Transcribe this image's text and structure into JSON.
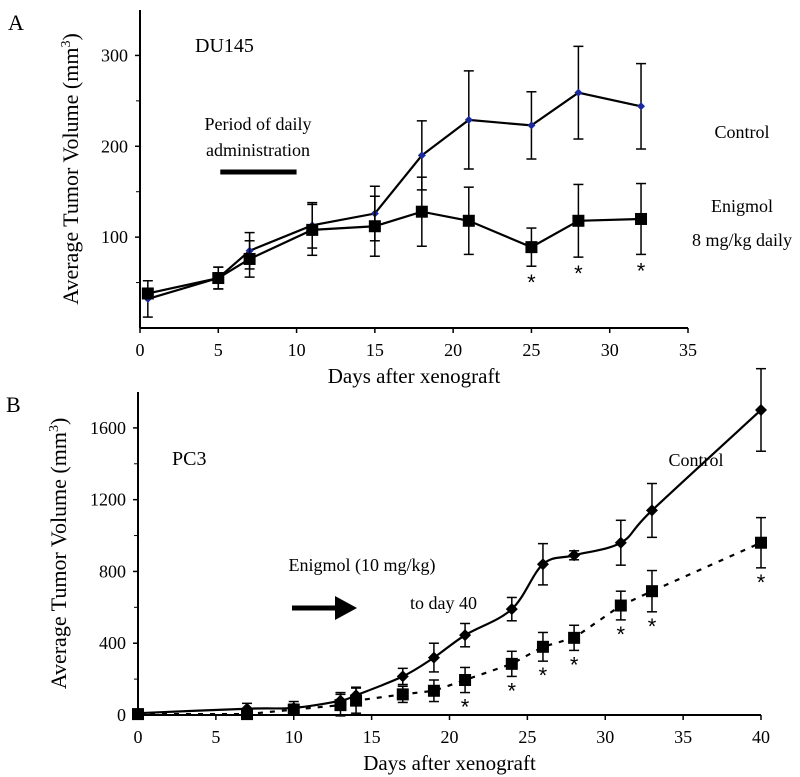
{
  "chart_data": [
    {
      "panel_label": "A",
      "type": "line",
      "title": "DU145",
      "xlabel": "Days after xenograft",
      "ylabel": "Average Tumor Volume (mm",
      "ylabel_sup": "3",
      "ylabel_close": ")",
      "xlim": [
        0,
        35
      ],
      "ylim": [
        0,
        350
      ],
      "xticks": [
        0,
        5,
        10,
        15,
        20,
        25,
        30,
        35
      ],
      "yticks": [
        100,
        200,
        300
      ],
      "yminor": [
        50,
        150,
        250
      ],
      "annotation": {
        "line1": "Period of daily",
        "line2": "administration",
        "bar_from": 5,
        "bar_to": 10
      },
      "series": [
        {
          "name": "Control",
          "label_lines": [
            "Control"
          ],
          "marker": "diamond",
          "marker_color": "#1a2a9a",
          "line": "solid",
          "x": [
            0.5,
            5,
            7,
            11,
            15,
            18,
            21,
            25,
            28,
            32
          ],
          "y": [
            32,
            55,
            85,
            113,
            126,
            190,
            229,
            223,
            259,
            244
          ],
          "err": [
            20,
            12,
            20,
            25,
            30,
            38,
            54,
            37,
            51,
            47
          ]
        },
        {
          "name": "Enigmol 8 mg/kg daily",
          "label_lines": [
            "Enigmol",
            "8 mg/kg daily"
          ],
          "marker": "square",
          "marker_color": "#000000",
          "line": "solid",
          "x": [
            0.5,
            5,
            7,
            11,
            15,
            18,
            21,
            25,
            28,
            32
          ],
          "y": [
            38,
            55,
            76,
            108,
            112,
            128,
            118,
            89,
            118,
            120
          ],
          "err": [
            0,
            12,
            20,
            28,
            33,
            38,
            37,
            21,
            40,
            39
          ]
        }
      ],
      "significance": {
        "symbol": "*",
        "x": [
          25,
          28,
          32
        ]
      }
    },
    {
      "panel_label": "B",
      "type": "line",
      "title": "PC3",
      "xlabel": "Days after xenograft",
      "ylabel": "Average Tumor Volume (mm",
      "ylabel_sup": "3",
      "ylabel_close": ")",
      "xlim": [
        0,
        40
      ],
      "ylim": [
        0,
        1800
      ],
      "xticks": [
        0,
        5,
        10,
        15,
        20,
        25,
        30,
        35,
        40
      ],
      "yticks": [
        0,
        400,
        800,
        1200,
        1600
      ],
      "yminor": [
        200,
        600,
        1000,
        1400
      ],
      "annotation": {
        "line1": "Enigmol (10 mg/kg)",
        "line2": "to day 40"
      },
      "series": [
        {
          "name": "Control",
          "label_lines": [
            "Control"
          ],
          "marker": "diamond",
          "marker_color": "#000000",
          "line": "smooth",
          "x": [
            0,
            7,
            10,
            13,
            14,
            17,
            19,
            21,
            24,
            26,
            28,
            31,
            33,
            40
          ],
          "y": [
            10,
            35,
            40,
            80,
            110,
            215,
            320,
            445,
            590,
            840,
            890,
            960,
            1140,
            1700
          ],
          "err": [
            0,
            30,
            35,
            45,
            45,
            45,
            80,
            65,
            65,
            115,
            25,
            125,
            150,
            230
          ]
        },
        {
          "name": "Enigmol (10 mg/kg)",
          "label_lines": [],
          "marker": "square",
          "marker_color": "#000000",
          "line": "dashed",
          "x": [
            0,
            7,
            10,
            13,
            14,
            17,
            19,
            21,
            24,
            26,
            28,
            31,
            33,
            40
          ],
          "y": [
            5,
            5,
            30,
            55,
            80,
            115,
            135,
            195,
            285,
            380,
            430,
            610,
            690,
            960
          ],
          "err": [
            0,
            0,
            30,
            60,
            70,
            45,
            60,
            70,
            70,
            80,
            70,
            80,
            115,
            140
          ]
        }
      ],
      "significance": {
        "symbol": "*",
        "x": [
          21,
          24,
          26,
          28,
          31,
          33,
          40
        ]
      }
    }
  ]
}
